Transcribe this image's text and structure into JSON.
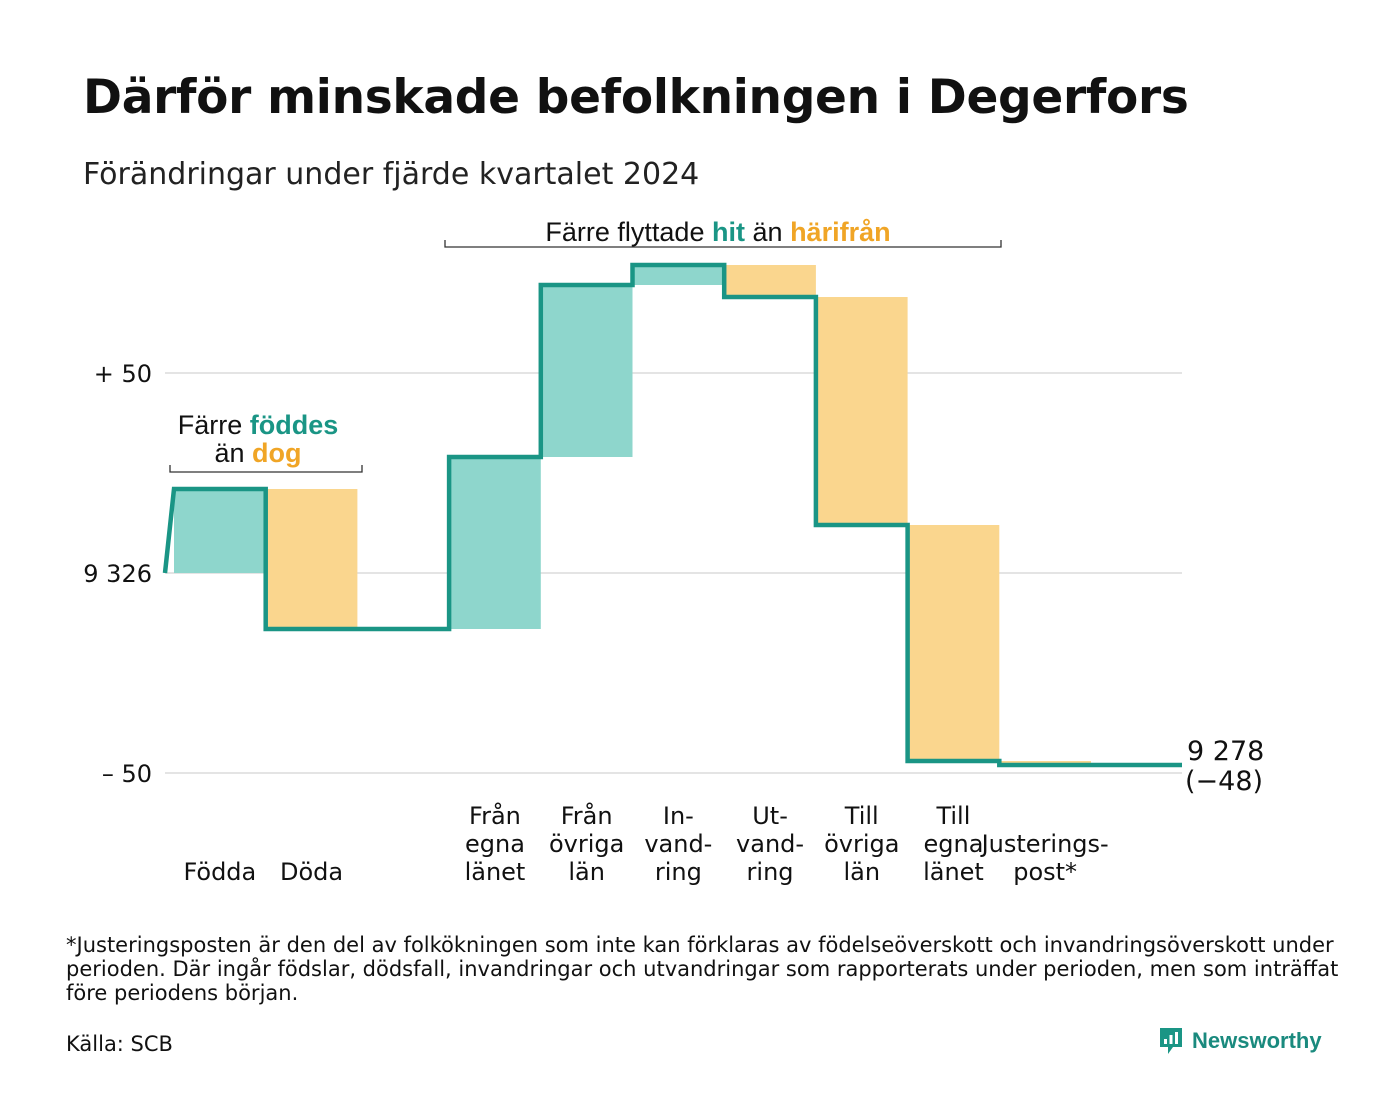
{
  "title": "Därför minskade befolkningen i Degerfors",
  "subtitle": "Förändringar under fjärde kvartalet 2024",
  "footnote": "*Justeringsposten är den del av folkökningen som inte kan förklaras av födelseöverskott och invandringsöverskott under perioden. Där ingår födslar, dödsfall, invandringar och utvandringar som rapporterats under perioden, men som inträffat före periodens början.",
  "source": "Källa: SCB",
  "brand": {
    "name": "Newsworthy",
    "icon": "newsworthy-logo-icon"
  },
  "colors": {
    "line": "#1a9585",
    "increase": "#8ed6cc",
    "decrease": "#fad68e",
    "grid": "#e4e4e4",
    "teal_text": "#1a9585",
    "orange_text": "#f0a526"
  },
  "annotations": {
    "births": {
      "line1_prefix": "Färre",
      "line1_highlight": "föddes",
      "line2_prefix": "än",
      "line2_highlight": "dog"
    },
    "migration": {
      "prefix": "Färre flyttade",
      "highlight1": "hit",
      "middle": "än",
      "highlight2": "härifrån"
    }
  },
  "chart_data": {
    "type": "waterfall",
    "title": "Därför minskade befolkningen i Degerfors",
    "subtitle": "Förändringar under fjärde kvartalet 2024",
    "start_value": 9326,
    "end_value": 9278,
    "end_change": -48,
    "end_label_line1": "9 278",
    "end_label_line2": "(−48)",
    "y_ticks": [
      {
        "value": 50,
        "label": "+ 50"
      },
      {
        "value": 0,
        "label": "9 326"
      },
      {
        "value": -50,
        "label": "– 50"
      }
    ],
    "ylim": [
      -50,
      78
    ],
    "grid": true,
    "categories": [
      {
        "label": [
          "Födda"
        ],
        "change": 21,
        "kind": "increase"
      },
      {
        "label": [
          "Döda"
        ],
        "change": -35,
        "kind": "decrease"
      },
      {
        "label": [],
        "change": 0,
        "kind": "gap"
      },
      {
        "label": [
          "Från",
          "egna",
          "länet"
        ],
        "change": 43,
        "kind": "increase"
      },
      {
        "label": [
          "Från",
          "övriga",
          "län"
        ],
        "change": 43,
        "kind": "increase"
      },
      {
        "label": [
          "In-",
          "vand-",
          "ring"
        ],
        "change": 5,
        "kind": "increase"
      },
      {
        "label": [
          "Ut-",
          "vand-",
          "ring"
        ],
        "change": -8,
        "kind": "decrease"
      },
      {
        "label": [
          "Till",
          "övriga",
          "län"
        ],
        "change": -57,
        "kind": "decrease"
      },
      {
        "label": [
          "Till",
          "egna",
          "länet"
        ],
        "change": -59,
        "kind": "decrease"
      },
      {
        "label": [
          "Justerings-",
          "post*"
        ],
        "change": -1,
        "kind": "decrease"
      }
    ]
  }
}
